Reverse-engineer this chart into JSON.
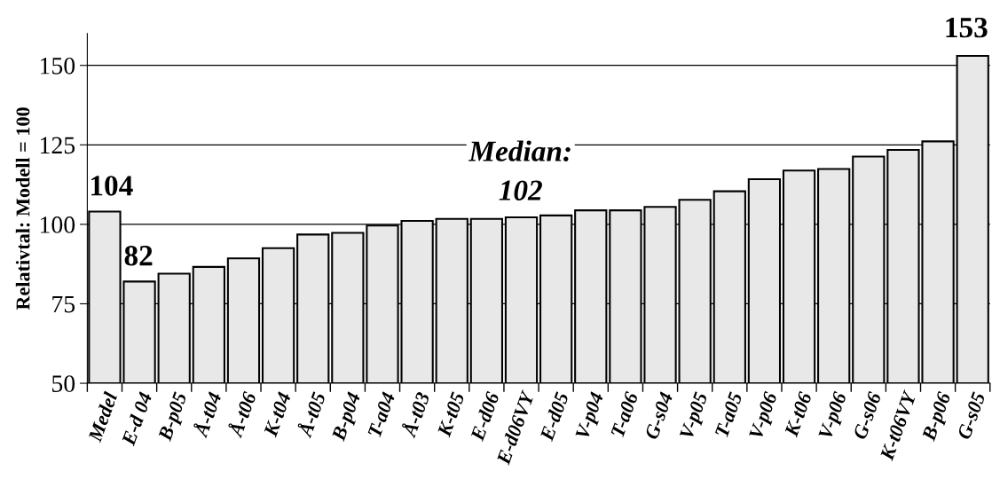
{
  "chart_data": {
    "type": "bar",
    "ylabel": "Relativtal: Modell = 100",
    "categories": [
      "Medel",
      "E-d 04",
      "B-p05",
      "Å-t04",
      "Å-t06",
      "K-t04",
      "Å-t05",
      "B-p04",
      "T-a04",
      "Å-t03",
      "K-t05",
      "E-d06",
      "E-d06VY",
      "E-d05",
      "V-p04",
      "T-a06",
      "G-s04",
      "V-p05",
      "T-a05",
      "V-p06",
      "K-t06",
      "V-p06",
      "G-s06",
      "K-t06VY",
      "B-p06",
      "G-s05"
    ],
    "values": [
      104,
      82,
      84.5,
      86.6,
      89.3,
      92.5,
      96.8,
      97.3,
      99.6,
      101.1,
      101.7,
      101.7,
      102.2,
      102.8,
      104.4,
      104.4,
      105.5,
      107.7,
      110.4,
      114.2,
      116.9,
      117.4,
      121.3,
      123.4,
      126.1,
      153
    ],
    "value_labels": [
      "104",
      "82",
      null,
      null,
      null,
      null,
      null,
      null,
      null,
      null,
      null,
      null,
      null,
      null,
      null,
      null,
      null,
      null,
      null,
      null,
      null,
      null,
      null,
      null,
      null,
      "153"
    ],
    "color": "#e8e8e8",
    "ylim": [
      50,
      160
    ],
    "yticks": [
      50,
      75,
      100,
      125,
      150
    ],
    "grid": "y",
    "annotations": [
      "Median:\n102"
    ]
  }
}
